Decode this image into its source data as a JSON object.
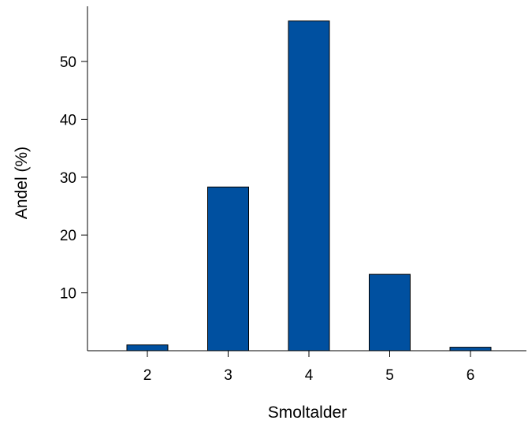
{
  "chart_data": {
    "type": "bar",
    "categories": [
      "2",
      "3",
      "4",
      "5",
      "6"
    ],
    "values": [
      1.0,
      28.3,
      57.0,
      13.2,
      0.6
    ],
    "xlabel": "Smoltalder",
    "ylabel": "Andel (%)",
    "yticks": [
      "10",
      "20",
      "30",
      "40",
      "50"
    ],
    "ylim": [
      0,
      60
    ],
    "grid": false,
    "bar_color": "#0050a0",
    "bar_edge_color": "#000000"
  }
}
